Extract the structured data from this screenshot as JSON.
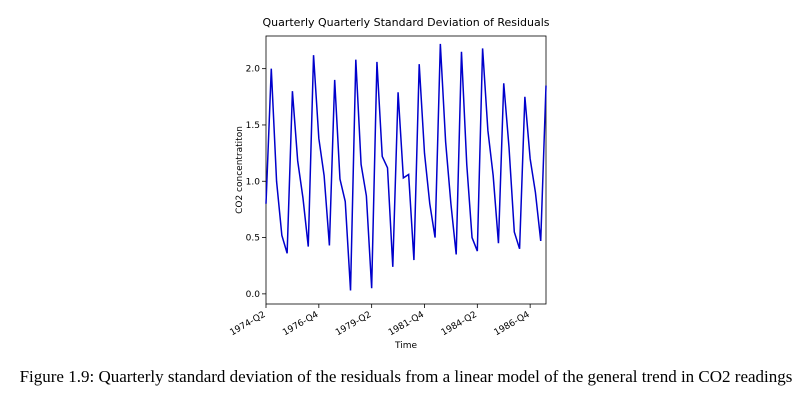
{
  "chart_data": {
    "type": "line",
    "title": "Quarterly Quarterly Standard Deviation of Residuals",
    "xlabel": "Time",
    "ylabel": "CO2 concentratiton",
    "categories": [
      "1974-Q2",
      null,
      null,
      null,
      null,
      null,
      null,
      null,
      null,
      null,
      "1976-Q4",
      null,
      null,
      null,
      null,
      null,
      null,
      null,
      null,
      null,
      "1979-Q2",
      null,
      null,
      null,
      null,
      null,
      null,
      null,
      null,
      null,
      "1981-Q4",
      null,
      null,
      null,
      null,
      null,
      null,
      null,
      null,
      null,
      "1984-Q2",
      null,
      null,
      null,
      null,
      null,
      null,
      null,
      null,
      null,
      "1986-Q4",
      null,
      null,
      null
    ],
    "values": [
      0.8,
      2.0,
      1.0,
      0.52,
      0.36,
      1.8,
      1.18,
      0.85,
      0.42,
      2.12,
      1.38,
      1.05,
      0.43,
      1.9,
      1.02,
      0.82,
      0.03,
      2.08,
      1.15,
      0.87,
      0.05,
      2.06,
      1.22,
      1.12,
      0.24,
      1.79,
      1.03,
      1.06,
      0.3,
      2.04,
      1.25,
      0.8,
      0.5,
      2.22,
      1.35,
      0.8,
      0.35,
      2.15,
      1.15,
      0.5,
      0.38,
      2.18,
      1.45,
      1.05,
      0.45,
      1.87,
      1.3,
      0.55,
      0.4,
      1.75,
      1.2,
      0.9,
      0.47,
      1.85
    ],
    "color": "#0000cc",
    "ylim": [
      -0.09,
      2.29
    ],
    "yticks": [
      {
        "value": 0,
        "label": "0.0"
      },
      0.5,
      {
        "value": 1,
        "label": "1.0"
      },
      1.5,
      {
        "value": 2,
        "label": "2.0"
      }
    ]
  },
  "caption": "Figure 1.9: Quarterly standard deviation of the residuals from a linear model of the general trend in CO2 readings"
}
